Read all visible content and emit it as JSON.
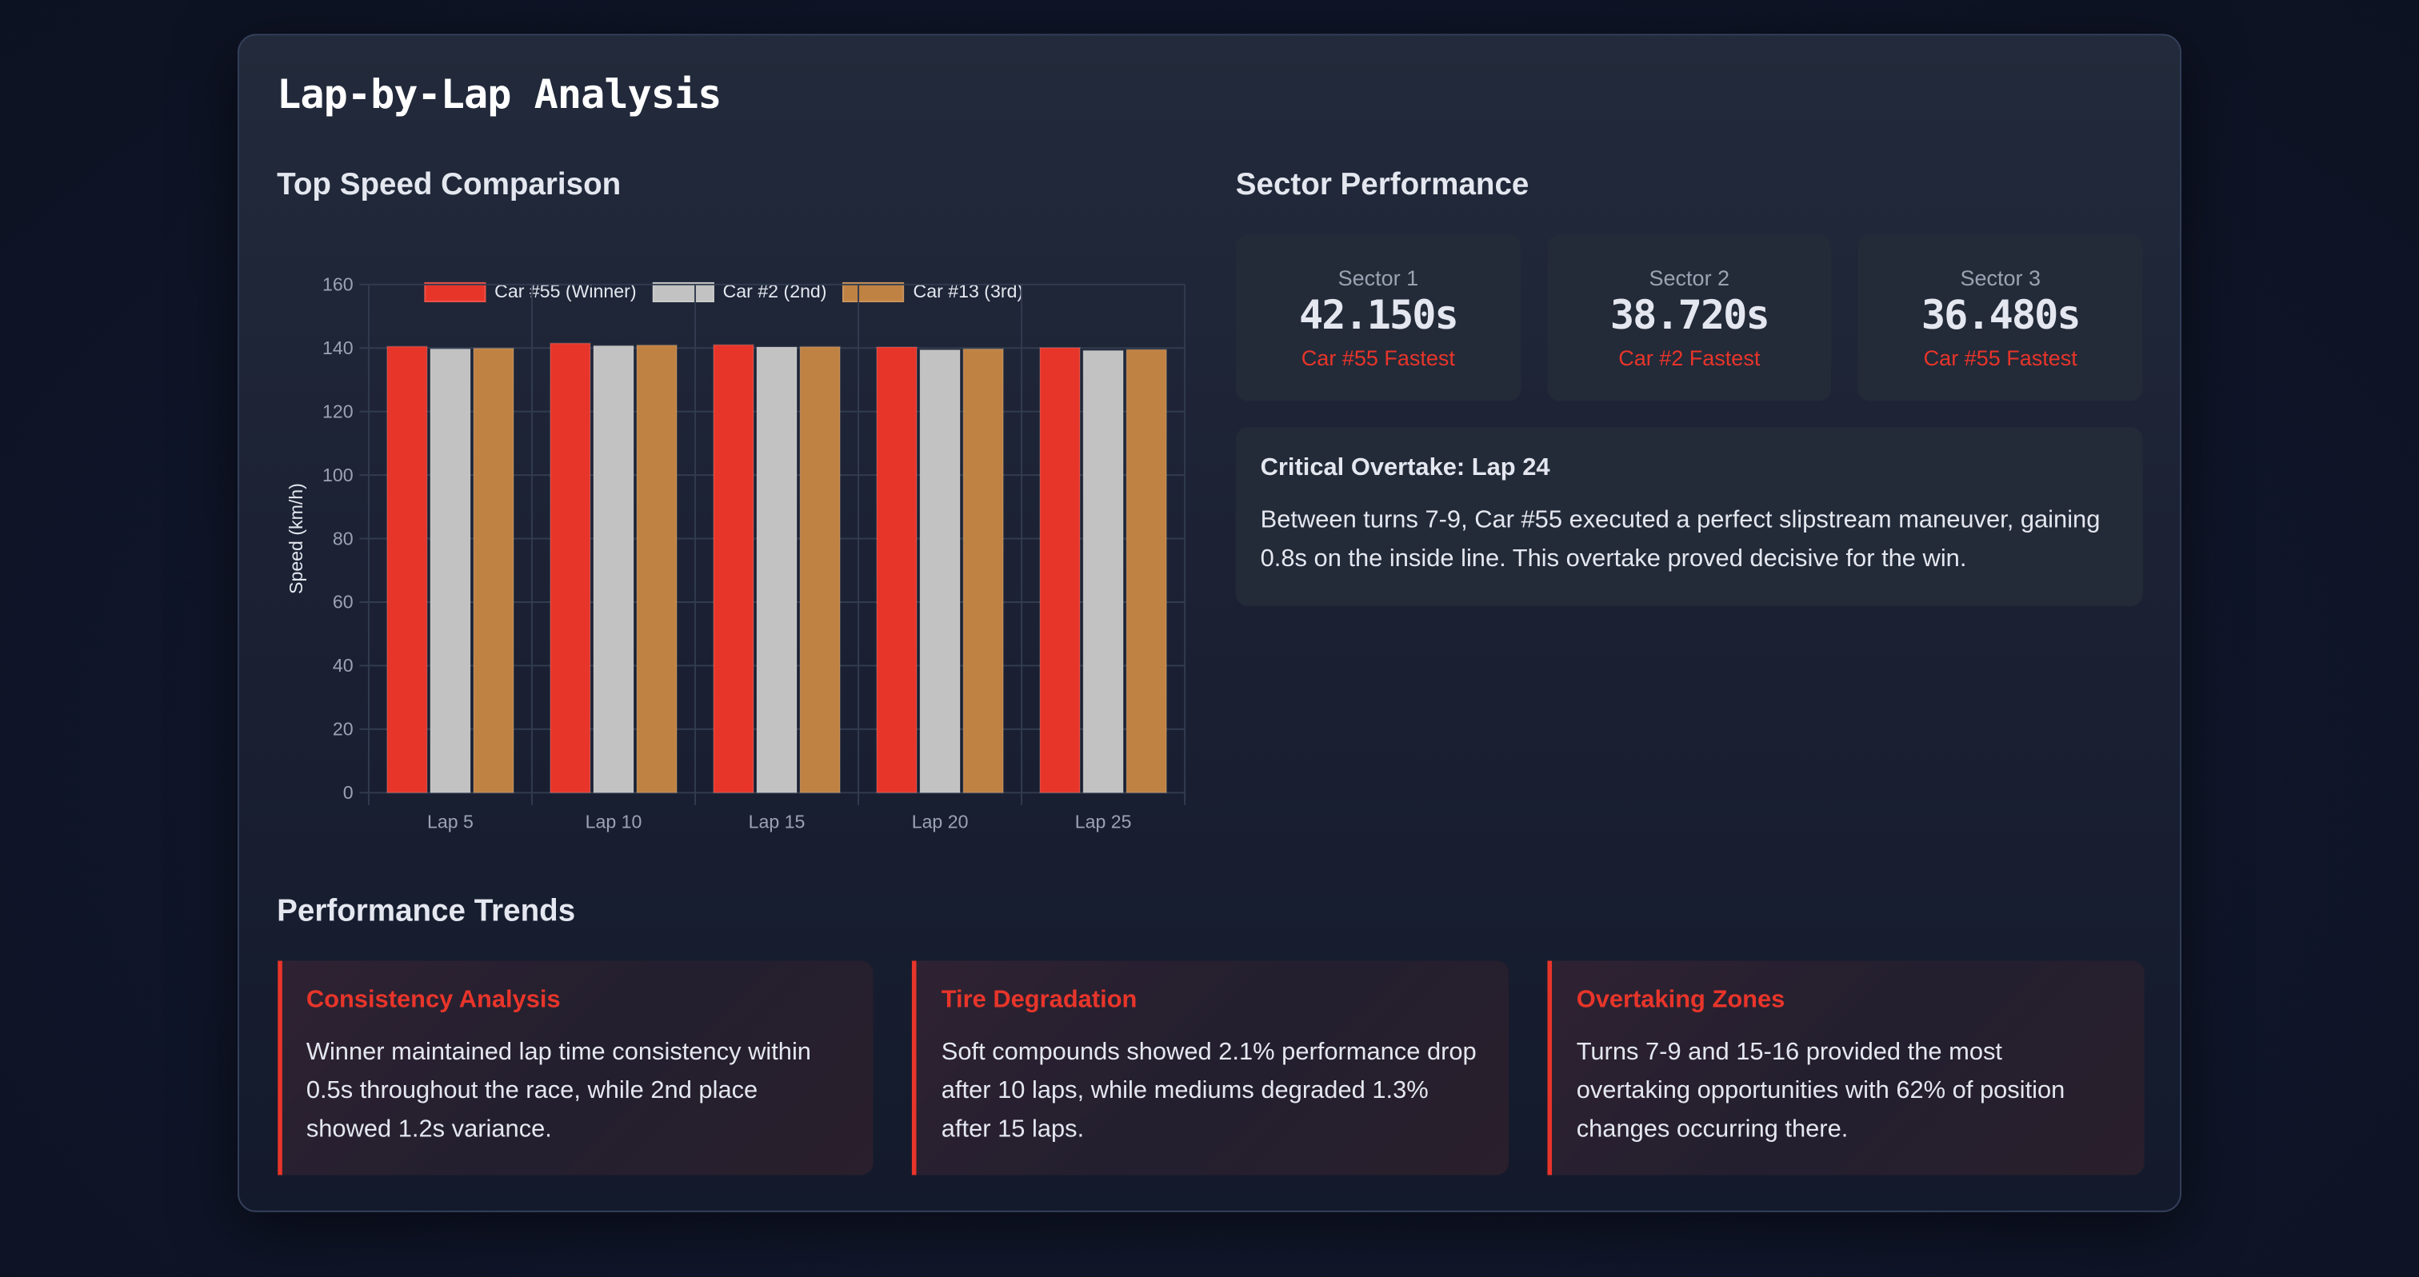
{
  "page": {
    "title": "Lap-by-Lap Analysis"
  },
  "sections": {
    "top_speed": "Top Speed Comparison",
    "sector_performance": "Sector Performance",
    "performance_trends": "Performance Trends"
  },
  "colors": {
    "accent": "#e8352a",
    "car55": "#e8352a",
    "car2": "#c2c2c2",
    "car13": "#c08242",
    "grid": "#323c4f",
    "tick": "#9ba3b3"
  },
  "chart_data": {
    "type": "bar",
    "title": "Top Speed Comparison",
    "xlabel": "",
    "ylabel": "Speed (km/h)",
    "ylim": [
      0,
      160
    ],
    "yticks": [
      0,
      20,
      40,
      60,
      80,
      100,
      120,
      140,
      160
    ],
    "grid": true,
    "legend_position": "top",
    "categories": [
      "Lap 5",
      "Lap 10",
      "Lap 15",
      "Lap 20",
      "Lap 25"
    ],
    "series": [
      {
        "name": "Car #55 (Winner)",
        "color": "#e8352a",
        "values": [
          140.5,
          141.5,
          141.0,
          140.3,
          140.1
        ]
      },
      {
        "name": "Car #2 (2nd)",
        "color": "#c2c2c2",
        "values": [
          139.7,
          140.7,
          140.3,
          139.4,
          139.2
        ]
      },
      {
        "name": "Car #13 (3rd)",
        "color": "#c08242",
        "values": [
          139.9,
          140.9,
          140.4,
          139.7,
          139.5
        ]
      }
    ]
  },
  "sectors": [
    {
      "label": "Sector 1",
      "time": "42.150s",
      "fastest": "Car #55 Fastest"
    },
    {
      "label": "Sector 2",
      "time": "38.720s",
      "fastest": "Car #2 Fastest"
    },
    {
      "label": "Sector 3",
      "time": "36.480s",
      "fastest": "Car #55 Fastest"
    }
  ],
  "overtake": {
    "title": "Critical Overtake: Lap 24",
    "text": "Between turns 7-9, Car #55 executed a perfect slipstream maneuver, gaining 0.8s on the inside line. This overtake proved decisive for the win."
  },
  "trends": [
    {
      "title": "Consistency Analysis",
      "text": "Winner maintained lap time consistency within 0.5s throughout the race, while 2nd place showed 1.2s variance."
    },
    {
      "title": "Tire Degradation",
      "text": "Soft compounds showed 2.1% performance drop after 10 laps, while mediums degraded 1.3% after 15 laps."
    },
    {
      "title": "Overtaking Zones",
      "text": "Turns 7-9 and 15-16 provided the most overtaking opportunities with 62% of position changes occurring there."
    }
  ]
}
